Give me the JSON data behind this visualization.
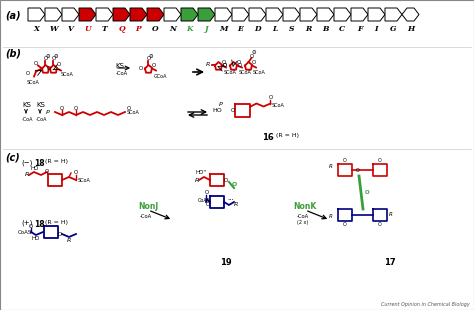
{
  "fig_width": 4.74,
  "fig_height": 3.1,
  "dpi": 100,
  "bg_color": "#ffffff",
  "red": "#cc0000",
  "green": "#3a9e3a",
  "blue": "#000080",
  "panel_a": {
    "label": "(a)",
    "label_colors": {
      "X": "black",
      "W": "black",
      "V": "black",
      "U": "#cc0000",
      "T": "black",
      "Q": "#cc0000",
      "P": "#cc0000",
      "O": "black",
      "N": "black",
      "K": "#3a9e3a",
      "J": "#3a9e3a",
      "M": "black",
      "E": "black",
      "D": "black",
      "L": "black",
      "S": "black",
      "R": "black",
      "B": "black",
      "C": "black",
      "F": "black",
      "I": "black",
      "G": "black",
      "H": "black"
    },
    "arrow_colors": {
      "X": "white",
      "W": "white",
      "V": "white",
      "U": "#cc0000",
      "T": "white",
      "Q": "#cc0000",
      "P": "#cc0000",
      "O": "#cc0000",
      "N": "white",
      "K": "#3a9e3a",
      "J": "#3a9e3a",
      "M": "white",
      "E": "white",
      "D": "white",
      "L": "white",
      "S": "white",
      "R": "white",
      "B": "white",
      "C": "white",
      "F": "white",
      "I": "white",
      "G": "white",
      "H": "white"
    }
  },
  "panel_b_label": "(b)",
  "panel_c_label": "(c)",
  "journal_text": "Current Opinion in Chemical Biology"
}
